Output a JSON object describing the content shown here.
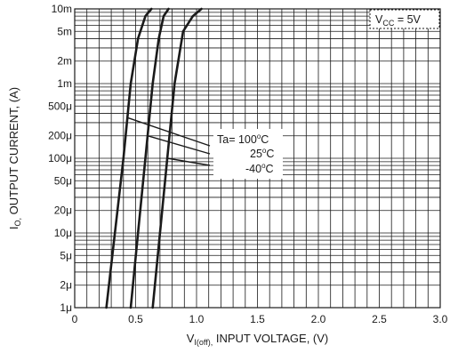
{
  "chart_data": {
    "type": "line",
    "xlabel_main": "V",
    "xlabel_sub": "I(off),",
    "xlabel_rest": " INPUT VOLTAGE, (V)",
    "ylabel_main": "I",
    "ylabel_sub": "O,",
    "ylabel_rest": " OUTPUT CURRENT, (A)",
    "xlim": [
      0,
      3.0
    ],
    "ylim": [
      1e-06,
      0.01
    ],
    "y_scale": "log",
    "grid": true,
    "x_ticks": [
      {
        "value": 0,
        "label": "0"
      },
      {
        "value": 0.5,
        "label": "0.5"
      },
      {
        "value": 1.0,
        "label": "1.0"
      },
      {
        "value": 1.5,
        "label": "1.5"
      },
      {
        "value": 2.0,
        "label": "2.0"
      },
      {
        "value": 2.5,
        "label": "2.5"
      },
      {
        "value": 3.0,
        "label": "3.0"
      }
    ],
    "y_ticks": [
      {
        "value": 1e-06,
        "label": "1μ"
      },
      {
        "value": 2e-06,
        "label": "2μ"
      },
      {
        "value": 5e-06,
        "label": "5μ"
      },
      {
        "value": 1e-05,
        "label": "10μ"
      },
      {
        "value": 2e-05,
        "label": "20μ"
      },
      {
        "value": 5e-05,
        "label": "50μ"
      },
      {
        "value": 0.0001,
        "label": "100μ"
      },
      {
        "value": 0.0002,
        "label": "200μ"
      },
      {
        "value": 0.0005,
        "label": "500μ"
      },
      {
        "value": 0.001,
        "label": "1m"
      },
      {
        "value": 0.002,
        "label": "2m"
      },
      {
        "value": 0.005,
        "label": "5m"
      },
      {
        "value": 0.01,
        "label": "10m"
      }
    ],
    "series": [
      {
        "name": "Ta= 100°C",
        "x": [
          0.26,
          0.33,
          0.4,
          0.46,
          0.52,
          0.58,
          0.63
        ],
        "y": [
          1e-06,
          1e-05,
          0.0001,
          0.001,
          0.004,
          0.008,
          0.01
        ]
      },
      {
        "name": "25°C",
        "x": [
          0.46,
          0.52,
          0.58,
          0.64,
          0.69,
          0.73,
          0.77
        ],
        "y": [
          1e-06,
          1e-05,
          0.0001,
          0.001,
          0.004,
          0.008,
          0.01
        ]
      },
      {
        "name": "-40°C",
        "x": [
          0.64,
          0.7,
          0.76,
          0.82,
          0.89,
          0.97,
          1.04
        ],
        "y": [
          1e-06,
          1e-05,
          0.0001,
          0.001,
          0.005,
          0.008,
          0.01
        ]
      }
    ],
    "annotations": {
      "vcc_main": "V",
      "vcc_sub": "CC",
      "vcc_rest": " = 5V",
      "ta_prefix": "Ta= 100",
      "ta_unit": "C",
      "mid_value": "25",
      "mid_unit": "C",
      "low_value": "-40",
      "low_unit": "C",
      "degree": "o"
    }
  }
}
